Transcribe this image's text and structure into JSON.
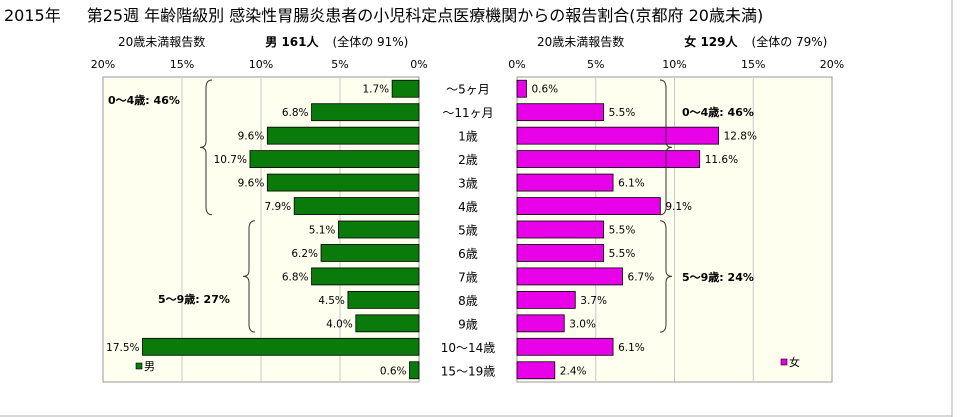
{
  "title": {
    "year": "2015年",
    "text": "第25週 年齢階級別 感染性胃腸炎患者の小児科定点医療機関からの報告割合(京都府 20歳未満)"
  },
  "left_header": {
    "prefix": "20歳未満報告数",
    "sex_count": "男 161人",
    "share": "(全体の 91%)"
  },
  "right_header": {
    "prefix": "20歳未満報告数",
    "sex_count": "女 129人",
    "share": "(全体の 79%)"
  },
  "colors": {
    "male": "#0a7a0a",
    "female": "#e800e8",
    "panel_bg": "#fffff0"
  },
  "chart_data": {
    "type": "bar",
    "orientation": "horizontal-population-pyramid",
    "categories": [
      "~5ヶ月",
      "~11ヶ月",
      "1歳",
      "2歳",
      "3歳",
      "4歳",
      "5歳",
      "6歳",
      "7歳",
      "8歳",
      "9歳",
      "10~14歳",
      "15~19歳"
    ],
    "category_display": [
      "〜5ヶ月",
      "〜11ヶ月",
      "1歳",
      "2歳",
      "3歳",
      "4歳",
      "5歳",
      "6歳",
      "7歳",
      "8歳",
      "9歳",
      "10〜14歳",
      "15〜19歳"
    ],
    "series": [
      {
        "name": "男",
        "values": [
          1.7,
          6.8,
          9.6,
          10.7,
          9.6,
          7.9,
          5.1,
          6.2,
          6.8,
          4.5,
          4.0,
          17.5,
          0.6
        ],
        "labels": [
          "1.7%",
          "6.8%",
          "9.6%",
          "10.7%",
          "9.6%",
          "7.9%",
          "5.1%",
          "6.2%",
          "6.8%",
          "4.5%",
          "4.0%",
          "17.5%",
          "0.6%"
        ]
      },
      {
        "name": "女",
        "values": [
          0.6,
          5.5,
          12.8,
          11.6,
          6.1,
          9.1,
          5.5,
          5.5,
          6.7,
          3.7,
          3.0,
          6.1,
          2.4
        ],
        "labels": [
          "0.6%",
          "5.5%",
          "12.8%",
          "11.6%",
          "6.1%",
          "9.1%",
          "5.5%",
          "5.5%",
          "6.7%",
          "3.7%",
          "3.0%",
          "6.1%",
          "2.4%"
        ]
      }
    ],
    "xlim": [
      0,
      20
    ],
    "left_ticks": [
      "20%",
      "15%",
      "10%",
      "5%",
      "0%"
    ],
    "right_ticks": [
      "0%",
      "5%",
      "10%",
      "15%",
      "20%"
    ],
    "group_labels": {
      "male": [
        {
          "text": "0〜4歳: 46%",
          "from": 0,
          "to": 5
        },
        {
          "text": "5〜9歳: 27%",
          "from": 6,
          "to": 10
        }
      ],
      "female": [
        {
          "text": "0〜4歳: 46%",
          "from": 0,
          "to": 5
        },
        {
          "text": "5〜9歳: 24%",
          "from": 6,
          "to": 10
        }
      ]
    }
  }
}
